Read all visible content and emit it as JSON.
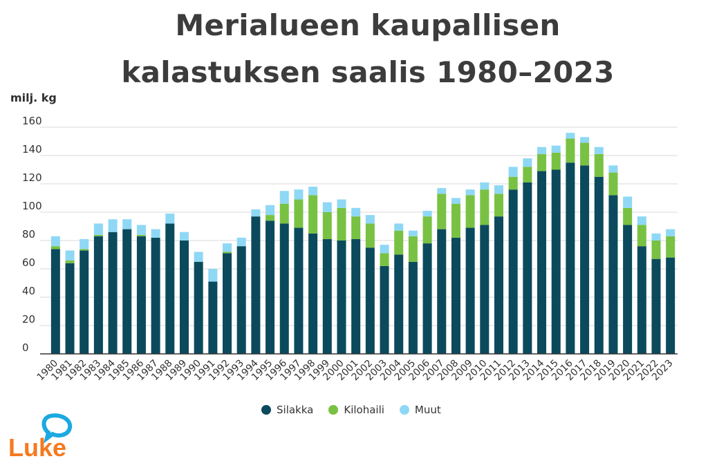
{
  "title_line1": "Merialueen kaupallisen",
  "title_line2": "kalastuksen saalis 1980–2023",
  "logo_text": "Luke",
  "colors": {
    "Silakka": "#0b4a5c",
    "Kilohaili": "#79c143",
    "Muut": "#8fd8f5",
    "grid": "#d9d9d9",
    "axis": "#333333",
    "logo": "#f47a20",
    "logo_bubble": "#1aa9e0"
  },
  "chart_data": {
    "type": "bar",
    "stacked": true,
    "title": "Merialueen kaupallisen kalastuksen saalis 1980–2023",
    "ylabel": "milj. kg",
    "xlabel": "",
    "ylim": [
      0,
      160
    ],
    "yticks": [
      0,
      20,
      40,
      60,
      80,
      100,
      120,
      140,
      160
    ],
    "grid": true,
    "legend_position": "bottom",
    "categories": [
      "1980",
      "1981",
      "1982",
      "1983",
      "1984",
      "1985",
      "1986",
      "1987",
      "1988",
      "1989",
      "1990",
      "1991",
      "1992",
      "1993",
      "1994",
      "1995",
      "1996",
      "1997",
      "1998",
      "1999",
      "2000",
      "2001",
      "2002",
      "2003",
      "2004",
      "2005",
      "2006",
      "2007",
      "2008",
      "2009",
      "2010",
      "2011",
      "2012",
      "2013",
      "2014",
      "2015",
      "2016",
      "2017",
      "2018",
      "2019",
      "2020",
      "2021",
      "2022",
      "2023"
    ],
    "series": [
      {
        "name": "Silakka",
        "values": [
          74,
          64,
          73,
          83,
          86,
          88,
          83,
          82,
          92,
          80,
          65,
          51,
          71,
          76,
          97,
          94,
          92,
          89,
          85,
          81,
          80,
          81,
          75,
          62,
          70,
          65,
          78,
          88,
          82,
          89,
          91,
          97,
          116,
          121,
          129,
          130,
          135,
          133,
          125,
          112,
          91,
          76,
          67,
          68
        ]
      },
      {
        "name": "Kilohaili",
        "values": [
          2,
          2,
          1,
          1,
          0,
          0,
          1,
          0,
          0,
          0,
          0,
          0,
          1,
          0,
          0,
          4,
          14,
          20,
          27,
          19,
          23,
          16,
          17,
          9,
          17,
          18,
          19,
          25,
          24,
          23,
          25,
          16,
          9,
          11,
          12,
          12,
          17,
          16,
          16,
          16,
          12,
          15,
          13,
          15
        ]
      },
      {
        "name": "Muut",
        "values": [
          7,
          7,
          7,
          8,
          9,
          7,
          7,
          6,
          7,
          6,
          7,
          9,
          6,
          6,
          5,
          7,
          9,
          7,
          6,
          7,
          6,
          6,
          6,
          6,
          5,
          4,
          4,
          4,
          4,
          4,
          5,
          6,
          7,
          6,
          5,
          5,
          4,
          4,
          5,
          5,
          8,
          6,
          5,
          5
        ]
      }
    ]
  }
}
